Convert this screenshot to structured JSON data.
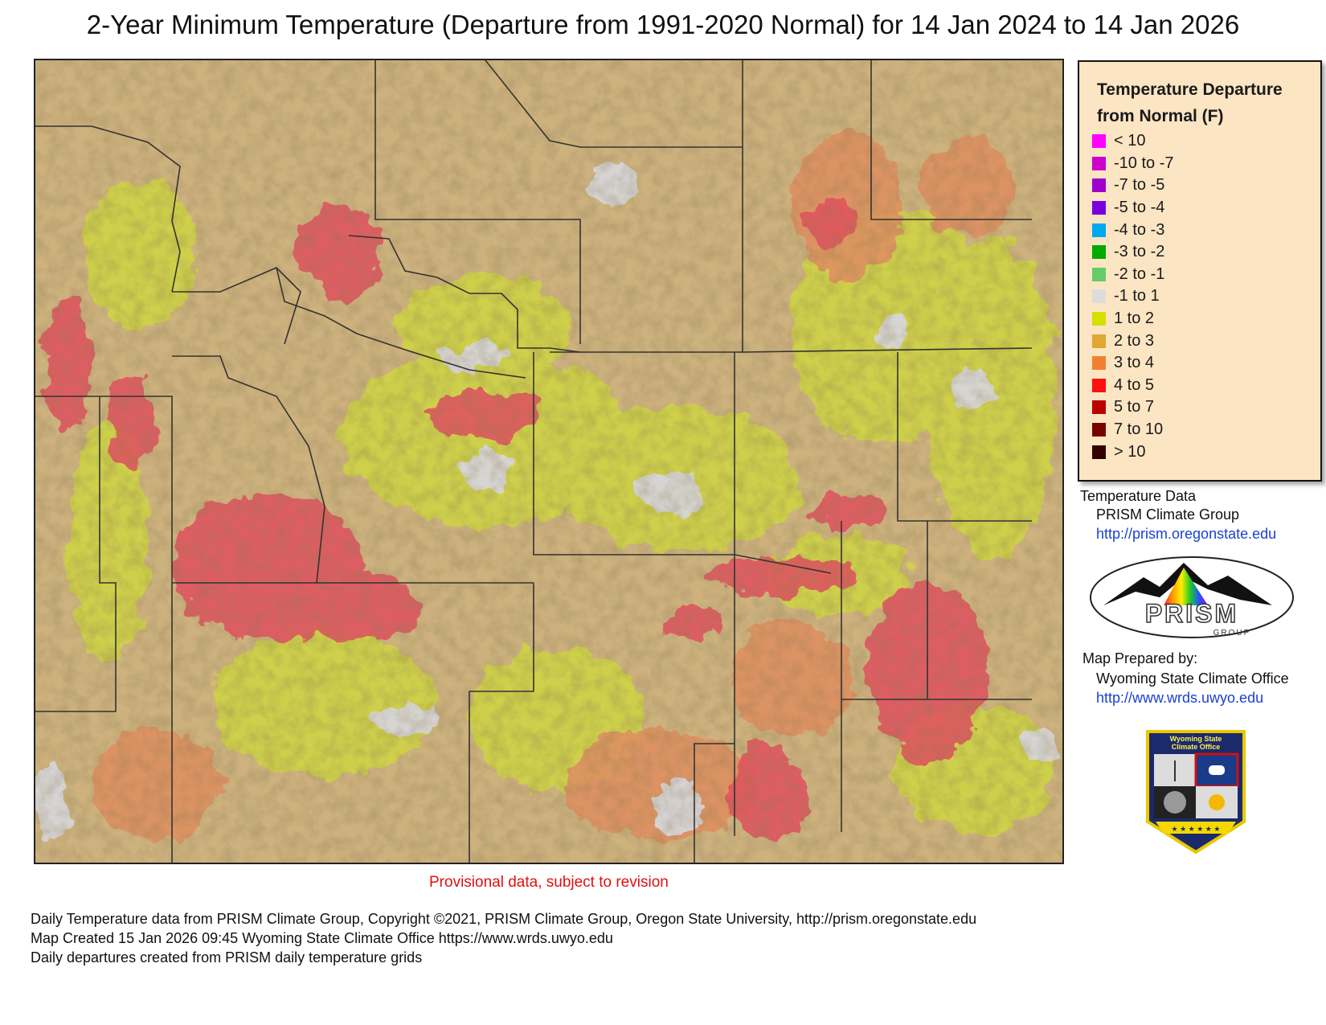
{
  "title": "2-Year Minimum Temperature (Departure from 1991-2020 Normal) for 14 Jan 2024 to 14 Jan 2026",
  "legend": {
    "title_line1": "Temperature Departure",
    "title_line2": "from Normal (F)",
    "items": [
      {
        "label": "< 10",
        "color": "#ff00ff"
      },
      {
        "label": "-10 to -7",
        "color": "#cc00cc"
      },
      {
        "label": "-7 to -5",
        "color": "#a000cc"
      },
      {
        "label": "-5 to -4",
        "color": "#7a00dd"
      },
      {
        "label": "-4 to -3",
        "color": "#00a8f0"
      },
      {
        "label": "-3 to -2",
        "color": "#00aa00"
      },
      {
        "label": "-2 to -1",
        "color": "#66cc66"
      },
      {
        "label": "-1 to 1",
        "color": "#dcdcdc"
      },
      {
        "label": "1 to 2",
        "color": "#d6e000"
      },
      {
        "label": "2 to 3",
        "color": "#e0a830"
      },
      {
        "label": "3 to 4",
        "color": "#f08030"
      },
      {
        "label": "4 to 5",
        "color": "#ff1010"
      },
      {
        "label": "5 to 7",
        "color": "#bb0000"
      },
      {
        "label": "7 to 10",
        "color": "#770000"
      },
      {
        "label": "> 10",
        "color": "#330000"
      }
    ]
  },
  "credits": {
    "temp_data_label": "Temperature Data",
    "temp_data_source": "PRISM Climate Group",
    "temp_data_url": "http://prism.oregonstate.edu",
    "prepared_label": "Map Prepared by:",
    "prepared_by": "Wyoming State Climate Office",
    "prepared_url": "http://www.wrds.uwyo.edu"
  },
  "logos": {
    "prism_text": "PRISM",
    "prism_group": "GROUP",
    "wsco_line1": "Wyoming State",
    "wsco_line2": "Climate Office"
  },
  "provisional": "Provisional data, subject to revision",
  "footer": {
    "line1": "Daily Temperature data from PRISM Climate Group, Copyright ©2021, PRISM Climate Group, Oregon State University, http://prism.oregonstate.edu",
    "line2": "Map Created 15 Jan 2026 09:45 Wyoming State Climate Office https://www.wrds.uwyo.edu",
    "line3": "Daily departures created from PRISM daily temperature grids"
  },
  "map_colors": {
    "base": "#cdb27e",
    "one_to_two": "#cfd24a",
    "three_to_four": "#de9160",
    "four_to_five": "#e0525e",
    "near_normal": "#d6d6d8",
    "boundary": "#333333"
  }
}
